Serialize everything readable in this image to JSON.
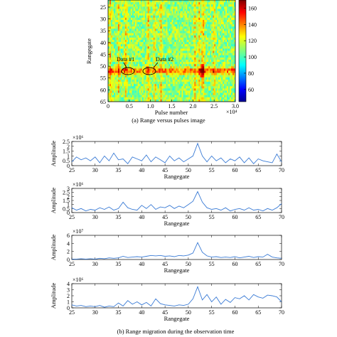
{
  "chart_data": [
    {
      "type": "heatmap",
      "caption": "(a) Range versus pulses image",
      "xlabel": "Pulse number",
      "ylabel": "Rangegate",
      "x_multiplier": "×10⁴",
      "xlim": [
        0,
        3.0
      ],
      "ylim": [
        65,
        22
      ],
      "x_ticks": [
        "0",
        "0.5",
        "1.0",
        "1.5",
        "2.0",
        "2.5",
        "3.0"
      ],
      "y_ticks": [
        "25",
        "30",
        "35",
        "40",
        "45",
        "50",
        "55",
        "60",
        "65"
      ],
      "colorbar": {
        "min": 45,
        "max": 170,
        "ticks": [
          "160",
          "140",
          "120",
          "100",
          "80",
          "60"
        ]
      },
      "hot_rangegate": 52,
      "hot_pulse_columns": [
        0.05,
        0.25,
        0.42,
        0.95,
        1.1,
        1.25,
        2.05,
        2.15,
        2.22,
        2.25,
        2.5
      ],
      "annotations": [
        {
          "text": "Data #1",
          "x": 0.4,
          "y": 52
        },
        {
          "text": "Data #2",
          "x": 1.0,
          "y": 52
        }
      ]
    },
    {
      "type": "line",
      "panel": "b1",
      "xlabel": "Rangegate",
      "ylabel": "Amplitude",
      "y_multiplier": "×10⁶",
      "xlim": [
        25,
        70
      ],
      "ylim": [
        0,
        2.5
      ],
      "y_ticks": [
        "0",
        "0.5",
        "1",
        "1.5",
        "2",
        "2.5"
      ],
      "x_ticks": [
        "25",
        "30",
        "35",
        "40",
        "45",
        "50",
        "55",
        "60",
        "65",
        "70"
      ],
      "x": [
        25,
        26,
        27,
        28,
        29,
        30,
        31,
        32,
        33,
        34,
        35,
        36,
        37,
        38,
        39,
        40,
        41,
        42,
        43,
        44,
        45,
        46,
        47,
        48,
        49,
        50,
        51,
        52,
        53,
        54,
        55,
        56,
        57,
        58,
        59,
        60,
        61,
        62,
        63,
        64,
        65,
        66,
        67,
        68,
        69,
        70
      ],
      "y": [
        0.4,
        0.9,
        0.6,
        0.8,
        0.5,
        0.9,
        0.3,
        1.0,
        0.5,
        1.3,
        0.6,
        0.7,
        0.2,
        0.9,
        0.7,
        0.5,
        1.1,
        0.4,
        0.9,
        0.6,
        0.3,
        1.0,
        0.5,
        0.8,
        0.4,
        0.7,
        1.0,
        2.3,
        1.0,
        0.4,
        1.0,
        0.5,
        0.8,
        0.3,
        0.7,
        0.5,
        0.9,
        0.3,
        0.8,
        0.2,
        0.7,
        0.5,
        0.4,
        0.3,
        1.2,
        0.4
      ]
    },
    {
      "type": "line",
      "panel": "b2",
      "xlabel": "Rangegate",
      "ylabel": "Amplitude",
      "y_multiplier": "×10⁶",
      "xlim": [
        25,
        70
      ],
      "ylim": [
        0,
        3.0
      ],
      "y_ticks": [
        "0",
        "0.5",
        "1",
        "1.5",
        "2",
        "2.5",
        "3"
      ],
      "x_ticks": [
        "25",
        "30",
        "35",
        "40",
        "45",
        "50",
        "55",
        "60",
        "65",
        "70"
      ],
      "x": [
        25,
        26,
        27,
        28,
        29,
        30,
        31,
        32,
        33,
        34,
        35,
        36,
        37,
        38,
        39,
        40,
        41,
        42,
        43,
        44,
        45,
        46,
        47,
        48,
        49,
        50,
        51,
        52,
        53,
        54,
        55,
        56,
        57,
        58,
        59,
        60,
        61,
        62,
        63,
        64,
        65,
        66,
        67,
        68,
        69,
        70
      ],
      "y": [
        0.6,
        0.3,
        0.5,
        0.2,
        0.4,
        0.3,
        0.6,
        0.4,
        0.7,
        0.3,
        0.5,
        1.3,
        0.6,
        0.4,
        0.3,
        0.9,
        0.5,
        1.0,
        0.4,
        0.7,
        0.6,
        0.9,
        0.5,
        0.8,
        0.6,
        1.0,
        1.4,
        2.6,
        1.3,
        0.6,
        0.4,
        0.5,
        0.3,
        0.6,
        0.2,
        0.4,
        0.5,
        0.3,
        0.6,
        0.3,
        0.4,
        0.2,
        0.5,
        0.3,
        0.6,
        1.1
      ]
    },
    {
      "type": "line",
      "panel": "b3",
      "xlabel": "Rangegate",
      "ylabel": "Amplitude",
      "y_multiplier": "×10⁷",
      "xlim": [
        25,
        70
      ],
      "ylim": [
        0,
        6
      ],
      "y_ticks": [
        "0",
        "2",
        "4",
        "6"
      ],
      "x_ticks": [
        "25",
        "30",
        "35",
        "40",
        "45",
        "50",
        "55",
        "60",
        "65",
        "70"
      ],
      "x": [
        25,
        26,
        27,
        28,
        29,
        30,
        31,
        32,
        33,
        34,
        35,
        36,
        37,
        38,
        39,
        40,
        41,
        42,
        43,
        44,
        45,
        46,
        47,
        48,
        49,
        50,
        51,
        52,
        53,
        54,
        55,
        56,
        57,
        58,
        59,
        60,
        61,
        62,
        63,
        64,
        65,
        66,
        67,
        68,
        69,
        70
      ],
      "y": [
        0.1,
        0.1,
        0.2,
        0.1,
        0.2,
        0.1,
        0.3,
        0.2,
        0.4,
        0.3,
        0.4,
        0.8,
        0.5,
        0.6,
        0.7,
        0.6,
        0.8,
        1.0,
        0.9,
        1.0,
        0.8,
        0.9,
        0.7,
        1.0,
        0.9,
        1.1,
        1.6,
        4.2,
        1.8,
        0.9,
        0.6,
        0.7,
        0.5,
        0.6,
        0.5,
        0.7,
        0.4,
        0.6,
        0.8,
        0.5,
        0.7,
        0.6,
        1.3,
        0.6,
        0.4,
        0.3
      ]
    },
    {
      "type": "line",
      "panel": "b4",
      "xlabel": "Rangegate",
      "ylabel": "Amplitude",
      "y_multiplier": "×10⁶",
      "xlim": [
        25,
        70
      ],
      "ylim": [
        0,
        4
      ],
      "y_ticks": [
        "0",
        "1",
        "2",
        "3",
        "4"
      ],
      "x_ticks": [
        "25",
        "30",
        "35",
        "40",
        "45",
        "50",
        "55",
        "60",
        "65",
        "70"
      ],
      "x": [
        25,
        26,
        27,
        28,
        29,
        30,
        31,
        32,
        33,
        34,
        35,
        36,
        37,
        38,
        39,
        40,
        41,
        42,
        43,
        44,
        45,
        46,
        47,
        48,
        49,
        50,
        51,
        52,
        53,
        54,
        55,
        56,
        57,
        58,
        59,
        60,
        61,
        62,
        63,
        64,
        65,
        66,
        67,
        68,
        69,
        70
      ],
      "y": [
        0.5,
        0.3,
        0.4,
        0.2,
        0.3,
        0.2,
        0.4,
        0.1,
        0.3,
        0.2,
        0.8,
        0.3,
        1.2,
        0.6,
        1.0,
        0.5,
        0.9,
        0.3,
        1.5,
        0.7,
        0.5,
        0.4,
        0.3,
        0.5,
        0.4,
        0.6,
        1.5,
        3.5,
        1.3,
        2.2,
        1.0,
        1.8,
        0.6,
        1.4,
        0.9,
        1.7,
        1.5,
        2.0,
        1.3,
        2.2,
        1.8,
        1.6,
        2.1,
        2.0,
        1.8,
        1.0
      ]
    }
  ],
  "caption_b": "(b) Range migration during the observation time",
  "line_color": "#3a7bd5"
}
